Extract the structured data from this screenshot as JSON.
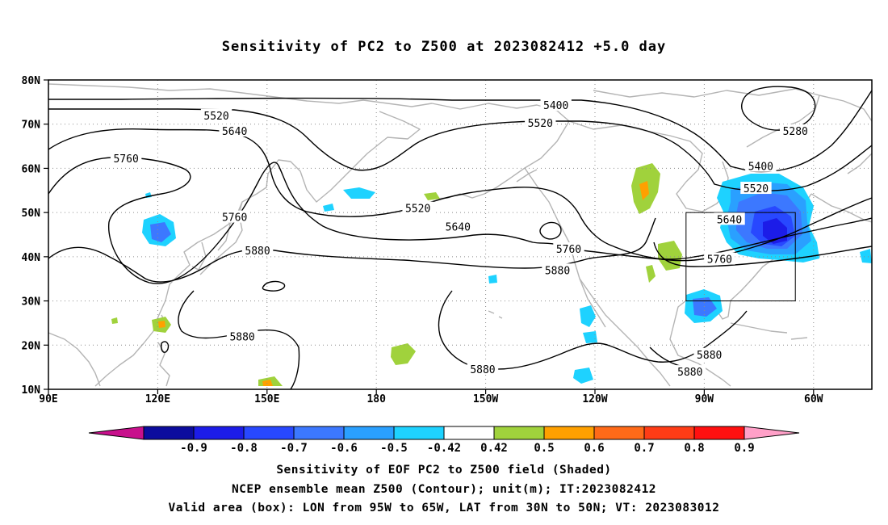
{
  "title": "Sensitivity of PC2 to Z500 at 2023082412 +5.0 day",
  "lat_ticks": [
    {
      "label": "80N",
      "value": 80
    },
    {
      "label": "70N",
      "value": 70
    },
    {
      "label": "60N",
      "value": 60
    },
    {
      "label": "50N",
      "value": 50
    },
    {
      "label": "40N",
      "value": 40
    },
    {
      "label": "30N",
      "value": 30
    },
    {
      "label": "20N",
      "value": 20
    },
    {
      "label": "10N",
      "value": 10
    }
  ],
  "lon_ticks": [
    {
      "label": "90E",
      "value": 90
    },
    {
      "label": "120E",
      "value": 120
    },
    {
      "label": "150E",
      "value": 150
    },
    {
      "label": "180",
      "value": 180
    },
    {
      "label": "150W",
      "value": 210
    },
    {
      "label": "120W",
      "value": 240
    },
    {
      "label": "90W",
      "value": 270
    },
    {
      "label": "60W",
      "value": 300
    }
  ],
  "extent": {
    "lon_min": 90,
    "lon_max": 316,
    "lat_min": 10,
    "lat_max": 80
  },
  "valid_box": {
    "lon_min": 265,
    "lon_max": 295,
    "lat_min": 30,
    "lat_max": 50
  },
  "contour_labels": [
    {
      "text": "5400",
      "lon": 229.3,
      "lat": 74.3
    },
    {
      "text": "5280",
      "lon": 295.0,
      "lat": 68.5
    },
    {
      "text": "5520",
      "lon": 136.1,
      "lat": 72.0
    },
    {
      "text": "5520",
      "lon": 225.0,
      "lat": 70.3
    },
    {
      "text": "5520",
      "lon": 284.2,
      "lat": 55.5
    },
    {
      "text": "5520",
      "lon": 191.4,
      "lat": 51.0
    },
    {
      "text": "5400",
      "lon": 285.5,
      "lat": 60.5
    },
    {
      "text": "5640",
      "lon": 141.1,
      "lat": 68.5
    },
    {
      "text": "5640",
      "lon": 202.4,
      "lat": 46.8
    },
    {
      "text": "5640",
      "lon": 276.9,
      "lat": 48.5
    },
    {
      "text": "5760",
      "lon": 111.3,
      "lat": 62.3
    },
    {
      "text": "5760",
      "lon": 141.1,
      "lat": 49.0
    },
    {
      "text": "5760",
      "lon": 232.8,
      "lat": 41.8
    },
    {
      "text": "5760",
      "lon": 274.2,
      "lat": 39.5
    },
    {
      "text": "5880",
      "lon": 147.4,
      "lat": 41.4
    },
    {
      "text": "5880",
      "lon": 229.7,
      "lat": 37.0
    },
    {
      "text": "5880",
      "lon": 143.2,
      "lat": 22.0
    },
    {
      "text": "5880",
      "lon": 271.4,
      "lat": 17.9
    },
    {
      "text": "5880",
      "lon": 266.1,
      "lat": 14.0
    },
    {
      "text": "5880",
      "lon": 209.2,
      "lat": 14.6
    }
  ],
  "colorbar": {
    "labels": [
      "-0.9",
      "-0.8",
      "-0.7",
      "-0.6",
      "-0.5",
      "-0.42",
      "0.42",
      "0.5",
      "0.6",
      "0.7",
      "0.8",
      "0.9"
    ],
    "colors": [
      "#0c0c9e",
      "#1c1ce8",
      "#2848ff",
      "#3c78ff",
      "#2aa0ff",
      "#1ed2ff",
      "#ffffff",
      "#a0d23c",
      "#ffa000",
      "#ff6a18",
      "#ff3c16",
      "#ff1010"
    ],
    "low_end_color": "#c8108c",
    "high_end_color": "#ffa0c8"
  },
  "colors": {
    "land_outline": "#b4b4b4",
    "contour": "#000000",
    "grid": "#8c8c8c"
  },
  "captions": {
    "line1": "Sensitivity of EOF PC2 to Z500 field (Shaded)",
    "line2": "NCEP ensemble mean Z500 (Contour); unit(m); IT:2023082412",
    "line3": "Valid area (box): LON from 95W to 65W, LAT from 30N to 50N; VT: 2023083012"
  }
}
